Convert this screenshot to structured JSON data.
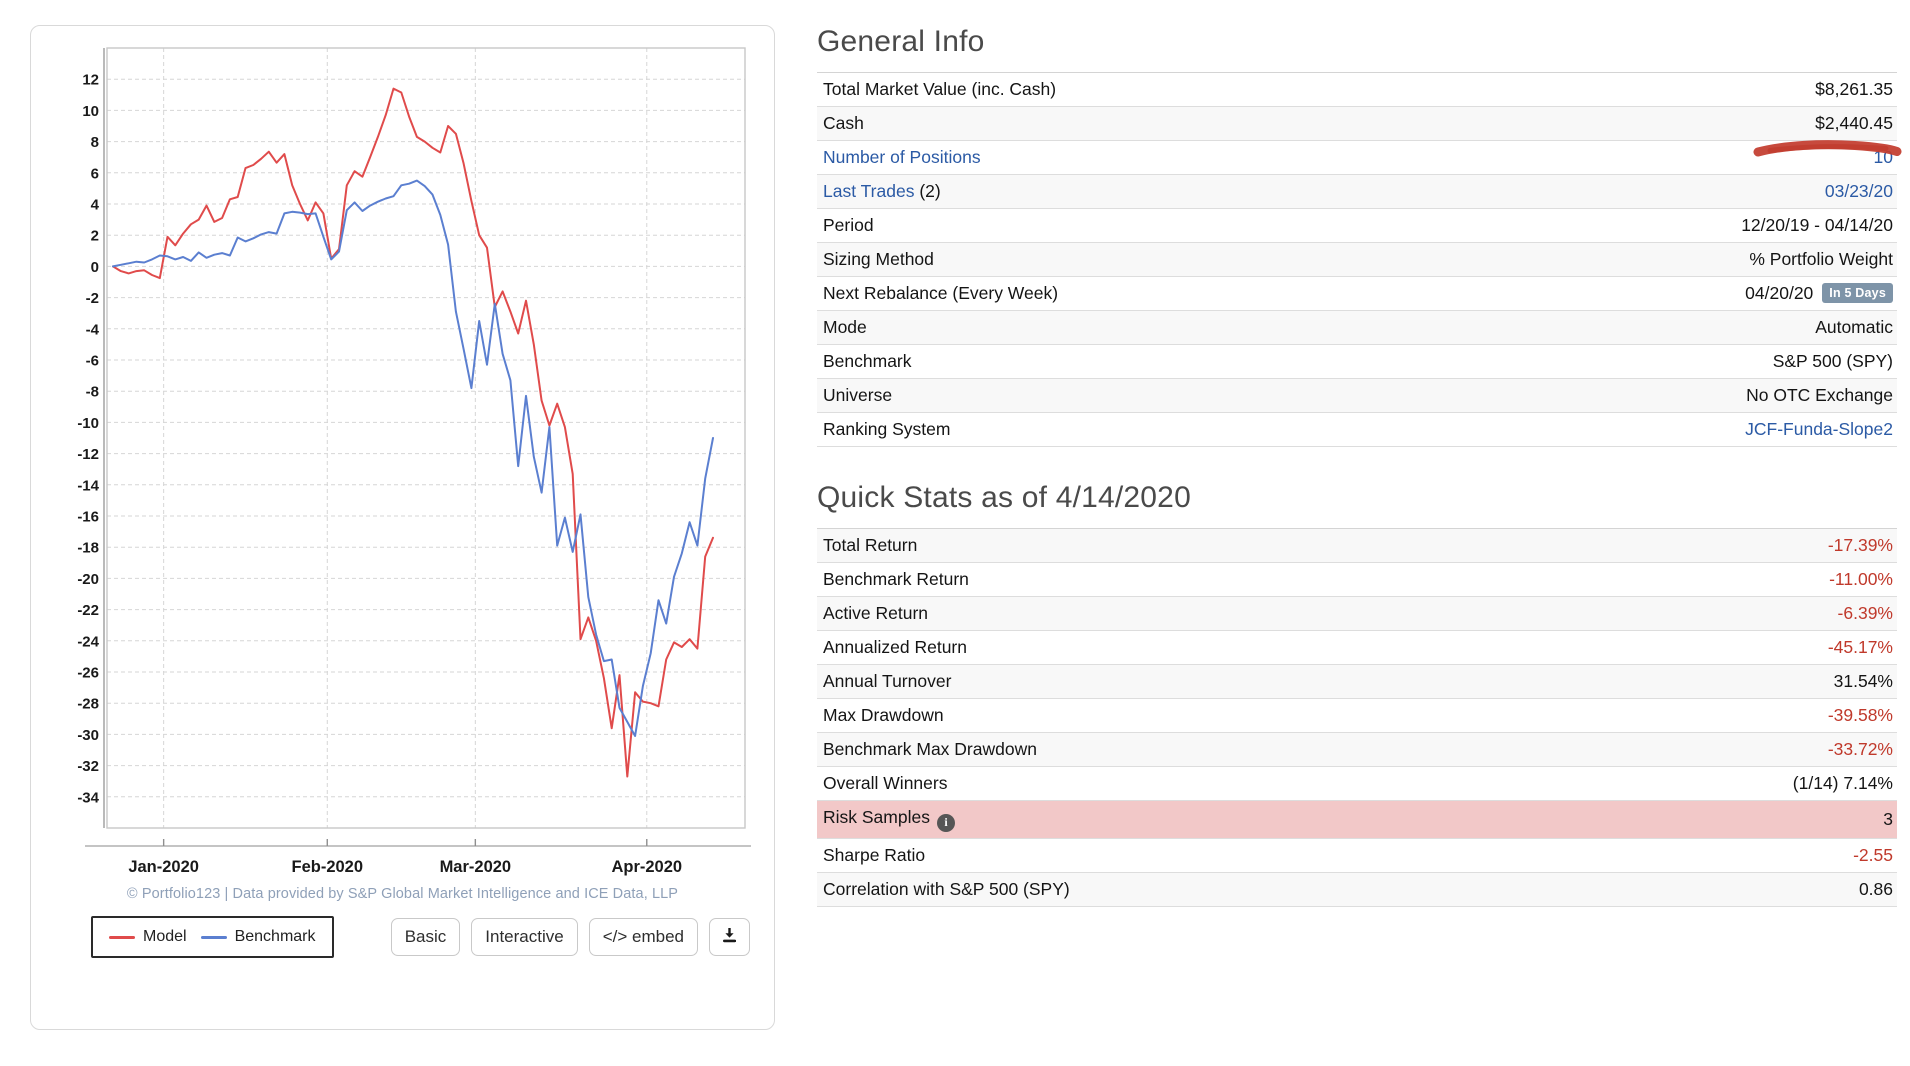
{
  "chart": {
    "attribution": "© Portfolio123 | Data provided by S&P Global Market Intelligence and ICE Data, LLP",
    "legend": [
      {
        "label": "Model",
        "color": "#e04b4b"
      },
      {
        "label": "Benchmark",
        "color": "#5b7fd0"
      }
    ],
    "buttons": {
      "basic": "Basic",
      "interactive": "Interactive",
      "embed": "</> embed"
    },
    "colors": {
      "grid": "#d6d6d6",
      "plot_border": "#c8c8c8",
      "axis": "#b0b0b0",
      "tick_text": "#1a1a1a"
    }
  },
  "chart_data": {
    "type": "line",
    "title": "",
    "xlabel": "",
    "ylabel": "",
    "ylim": [
      -36,
      14
    ],
    "ytick_min": -34,
    "ytick_max": 12,
    "ytick_step": 2,
    "grid": "dashed",
    "legend_position": "bottom-left",
    "n_points": 78,
    "x_month_ticks": [
      {
        "label": "Jan-2020",
        "day": 6.5
      },
      {
        "label": "Feb-2020",
        "day": 27.5
      },
      {
        "label": "Mar-2020",
        "day": 46.5
      },
      {
        "label": "Apr-2020",
        "day": 68.5
      }
    ],
    "series": [
      {
        "name": "Model",
        "color": "#e04b4b",
        "values": [
          0,
          -0.3,
          -0.45,
          -0.3,
          -0.25,
          -0.55,
          -0.75,
          1.9,
          1.35,
          2.1,
          2.7,
          3.0,
          3.9,
          2.85,
          3.1,
          4.3,
          4.45,
          6.3,
          6.5,
          6.9,
          7.35,
          6.65,
          7.2,
          5.2,
          4.0,
          2.95,
          4.1,
          3.4,
          0.5,
          1.1,
          5.2,
          6.1,
          5.75,
          7.0,
          8.3,
          9.7,
          11.4,
          11.15,
          9.6,
          8.3,
          8.0,
          7.6,
          7.3,
          9.0,
          8.5,
          6.6,
          4.2,
          2.0,
          1.2,
          -2.6,
          -1.6,
          -2.9,
          -4.3,
          -2.2,
          -5.0,
          -8.6,
          -10.2,
          -8.8,
          -10.3,
          -13.3,
          -23.9,
          -22.5,
          -24.0,
          -26.4,
          -29.6,
          -26.2,
          -32.7,
          -27.3,
          -27.9,
          -28.0,
          -28.2,
          -25.2,
          -24.1,
          -24.4,
          -23.9,
          -24.5,
          -18.6,
          -17.4
        ]
      },
      {
        "name": "Benchmark",
        "color": "#5b7fd0",
        "values": [
          0,
          0.1,
          0.2,
          0.3,
          0.25,
          0.45,
          0.7,
          0.65,
          0.45,
          0.6,
          0.35,
          0.9,
          0.55,
          0.75,
          0.85,
          0.7,
          1.85,
          1.6,
          1.8,
          2.05,
          2.2,
          2.1,
          3.4,
          3.5,
          3.45,
          3.35,
          3.4,
          1.9,
          0.45,
          0.95,
          3.6,
          4.1,
          3.55,
          3.9,
          4.15,
          4.35,
          4.5,
          5.2,
          5.3,
          5.5,
          5.15,
          4.6,
          3.3,
          1.4,
          -2.9,
          -5.3,
          -7.8,
          -3.5,
          -6.3,
          -2.4,
          -5.6,
          -7.3,
          -12.8,
          -8.3,
          -12.2,
          -14.5,
          -10.3,
          -17.9,
          -16.1,
          -18.3,
          -15.9,
          -21.2,
          -23.6,
          -25.3,
          -25.2,
          -28.3,
          -29.2,
          -30.1,
          -26.9,
          -24.8,
          -21.4,
          -22.9,
          -19.9,
          -18.4,
          -16.4,
          -17.9,
          -13.6,
          -11.0
        ]
      }
    ]
  },
  "general_info": {
    "title": "General Info",
    "rows": [
      {
        "label": "Total Market Value (inc. Cash)",
        "value": "$8,261.35"
      },
      {
        "label": "Cash",
        "value": "$2,440.45",
        "shade": true
      },
      {
        "label": "Number of Positions",
        "value": "10",
        "label_link": true,
        "value_link": true
      },
      {
        "label": "Last Trades",
        "label_suffix": " (2)",
        "value": "03/23/20",
        "label_link": true,
        "value_link": true,
        "shade": true
      },
      {
        "label": "Period",
        "value": "12/20/19 - 04/14/20"
      },
      {
        "label": "Sizing Method",
        "value": "% Portfolio Weight",
        "shade": true
      },
      {
        "label": "Next Rebalance (Every Week)",
        "value": "04/20/20",
        "badge": "In 5 Days"
      },
      {
        "label": "Mode",
        "value": "Automatic",
        "shade": true
      },
      {
        "label": "Benchmark",
        "value": "S&P 500 (SPY)"
      },
      {
        "label": "Universe",
        "value": "No OTC Exchange",
        "shade": true
      },
      {
        "label": "Ranking System",
        "value": "JCF-Funda-Slope2",
        "value_link": true
      }
    ],
    "annotation": {
      "name": "red-marker-scribble",
      "color": "#c23b2c"
    }
  },
  "quick_stats": {
    "title": "Quick Stats as of 4/14/2020",
    "rows": [
      {
        "label": "Total Return",
        "value": "-17.39%",
        "neg": true,
        "shade": true
      },
      {
        "label": "Benchmark Return",
        "value": "-11.00%",
        "neg": true
      },
      {
        "label": "Active Return",
        "value": "-6.39%",
        "neg": true,
        "shade": true
      },
      {
        "label": "Annualized Return",
        "value": "-45.17%",
        "neg": true
      },
      {
        "label": "Annual Turnover",
        "value": "31.54%",
        "shade": true
      },
      {
        "label": "Max Drawdown",
        "value": "-39.58%",
        "neg": true
      },
      {
        "label": "Benchmark Max Drawdown",
        "value": "-33.72%",
        "neg": true,
        "shade": true
      },
      {
        "label": "Overall Winners",
        "value": "(1/14) 7.14%"
      },
      {
        "label": "Risk Samples",
        "value": "3",
        "highlight": true,
        "info": true
      },
      {
        "label": "Sharpe Ratio",
        "value": "-2.55",
        "neg": true
      },
      {
        "label": "Correlation with S&P 500 (SPY)",
        "value": "0.86",
        "shade": true
      }
    ]
  }
}
